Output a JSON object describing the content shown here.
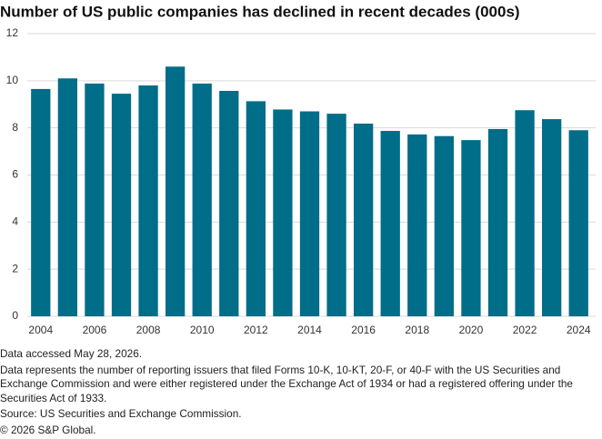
{
  "chart_data": {
    "type": "bar",
    "title": "Number of US public companies has declined in recent decades (000s)",
    "categories": [
      "2004",
      null,
      "2006",
      null,
      "2008",
      null,
      "2010",
      null,
      "2012",
      null,
      "2014",
      null,
      "2016",
      null,
      "2018",
      null,
      "2020",
      null,
      "2022",
      null,
      "2024"
    ],
    "values": [
      9.65,
      10.1,
      9.88,
      9.45,
      9.8,
      10.6,
      9.88,
      9.57,
      9.13,
      8.78,
      8.7,
      8.6,
      8.18,
      7.87,
      7.72,
      7.65,
      7.48,
      7.95,
      8.75,
      8.37,
      7.9
    ],
    "color": "#006d89",
    "ylim": [
      0,
      12
    ],
    "yticks": [
      0,
      2,
      4,
      6,
      8,
      10,
      12
    ],
    "grid": true,
    "notes": [
      "Data accessed May 28, 2026.",
      "Data represents the number of reporting issuers that filed Forms 10-K, 10-KT, 20-F, or 40-F with the US Securities and Exchange Commission and were either registered under the Exchange Act of 1934 or had a registered offering under the Securities Act of 1933.",
      "Source: US Securities and Exchange Commission.",
      "© 2026 S&P Global."
    ]
  }
}
